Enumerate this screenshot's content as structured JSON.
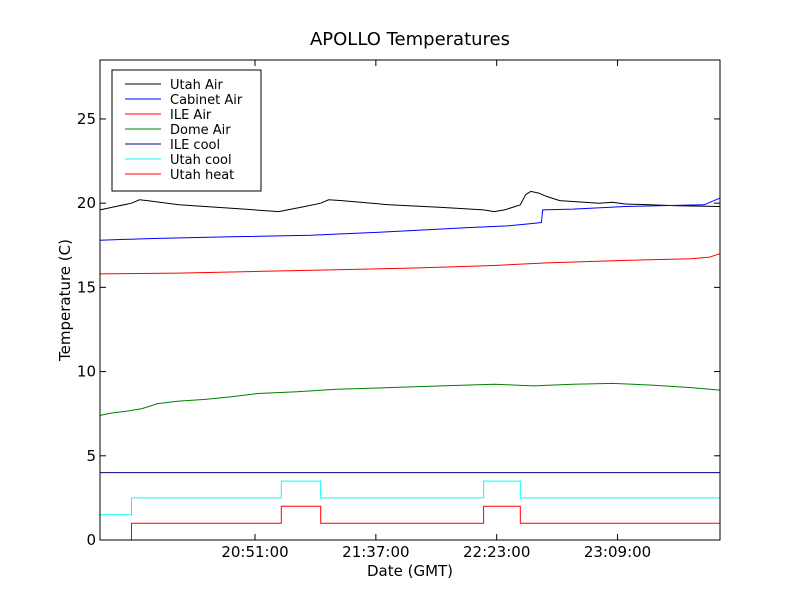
{
  "chart_data": {
    "type": "line",
    "title": "APOLLO Temperatures",
    "xlabel": "Date (GMT)",
    "ylabel": "Temperature (C)",
    "x_unit": "minutes since 19:52:00 GMT",
    "xlim": [
      0,
      236
    ],
    "ylim": [
      0,
      28.5
    ],
    "x_ticks": [
      {
        "value": 59,
        "label": "20:51:00"
      },
      {
        "value": 105,
        "label": "21:37:00"
      },
      {
        "value": 151,
        "label": "22:23:00"
      },
      {
        "value": 197,
        "label": "23:09:00"
      }
    ],
    "y_ticks": [
      {
        "value": 0,
        "label": "0"
      },
      {
        "value": 5,
        "label": "5"
      },
      {
        "value": 10,
        "label": "10"
      },
      {
        "value": 15,
        "label": "15"
      },
      {
        "value": 20,
        "label": "20"
      },
      {
        "value": 25,
        "label": "25"
      }
    ],
    "legend_position": "top-left",
    "series": [
      {
        "name": "Utah Air",
        "color": "#000000",
        "step": false,
        "points": [
          [
            0,
            19.6
          ],
          [
            6,
            19.8
          ],
          [
            12,
            20.0
          ],
          [
            15,
            20.2
          ],
          [
            18,
            20.15
          ],
          [
            30,
            19.9
          ],
          [
            50,
            19.7
          ],
          [
            68,
            19.5
          ],
          [
            78,
            19.8
          ],
          [
            84,
            20.0
          ],
          [
            87,
            20.2
          ],
          [
            92,
            20.15
          ],
          [
            110,
            19.9
          ],
          [
            130,
            19.75
          ],
          [
            146,
            19.6
          ],
          [
            150,
            19.5
          ],
          [
            154,
            19.6
          ],
          [
            160,
            19.9
          ],
          [
            162,
            20.5
          ],
          [
            164,
            20.7
          ],
          [
            167,
            20.6
          ],
          [
            170,
            20.4
          ],
          [
            175,
            20.15
          ],
          [
            190,
            20.0
          ],
          [
            195,
            20.05
          ],
          [
            200,
            19.95
          ],
          [
            220,
            19.85
          ],
          [
            236,
            19.8
          ]
        ]
      },
      {
        "name": "Cabinet Air",
        "color": "#0000ff",
        "step": false,
        "points": [
          [
            0,
            17.8
          ],
          [
            20,
            17.9
          ],
          [
            50,
            18.0
          ],
          [
            80,
            18.1
          ],
          [
            110,
            18.3
          ],
          [
            140,
            18.55
          ],
          [
            155,
            18.65
          ],
          [
            165,
            18.8
          ],
          [
            168,
            18.85
          ],
          [
            168.5,
            19.6
          ],
          [
            180,
            19.65
          ],
          [
            200,
            19.8
          ],
          [
            230,
            19.9
          ],
          [
            236,
            20.3
          ]
        ]
      },
      {
        "name": "ILE Air",
        "color": "#ff0000",
        "step": false,
        "points": [
          [
            0,
            15.8
          ],
          [
            30,
            15.85
          ],
          [
            60,
            15.95
          ],
          [
            90,
            16.05
          ],
          [
            120,
            16.15
          ],
          [
            150,
            16.3
          ],
          [
            170,
            16.45
          ],
          [
            200,
            16.6
          ],
          [
            225,
            16.7
          ],
          [
            232,
            16.8
          ],
          [
            236,
            17.0
          ]
        ]
      },
      {
        "name": "Dome Air",
        "color": "#008000",
        "step": false,
        "points": [
          [
            0,
            7.4
          ],
          [
            5,
            7.55
          ],
          [
            10,
            7.65
          ],
          [
            16,
            7.8
          ],
          [
            22,
            8.1
          ],
          [
            30,
            8.25
          ],
          [
            40,
            8.35
          ],
          [
            50,
            8.5
          ],
          [
            60,
            8.7
          ],
          [
            75,
            8.8
          ],
          [
            90,
            8.95
          ],
          [
            110,
            9.05
          ],
          [
            130,
            9.15
          ],
          [
            150,
            9.25
          ],
          [
            158,
            9.2
          ],
          [
            165,
            9.15
          ],
          [
            180,
            9.25
          ],
          [
            195,
            9.3
          ],
          [
            210,
            9.2
          ],
          [
            225,
            9.05
          ],
          [
            236,
            8.9
          ]
        ]
      },
      {
        "name": "ILE cool",
        "color": "#000080",
        "step": true,
        "points": [
          [
            0,
            4.0
          ],
          [
            236,
            4.0
          ]
        ]
      },
      {
        "name": "Utah cool",
        "color": "#00ffff",
        "step": true,
        "points": [
          [
            0,
            1.5
          ],
          [
            12,
            2.5
          ],
          [
            69,
            3.5
          ],
          [
            84,
            2.5
          ],
          [
            146,
            3.5
          ],
          [
            160,
            2.5
          ],
          [
            236,
            2.5
          ]
        ]
      },
      {
        "name": "Utah heat",
        "color": "#ff0000",
        "step": true,
        "points": [
          [
            0,
            0.0
          ],
          [
            12,
            1.0
          ],
          [
            69,
            2.0
          ],
          [
            84,
            1.0
          ],
          [
            146,
            2.0
          ],
          [
            160,
            1.0
          ],
          [
            236,
            1.0
          ]
        ]
      }
    ]
  }
}
